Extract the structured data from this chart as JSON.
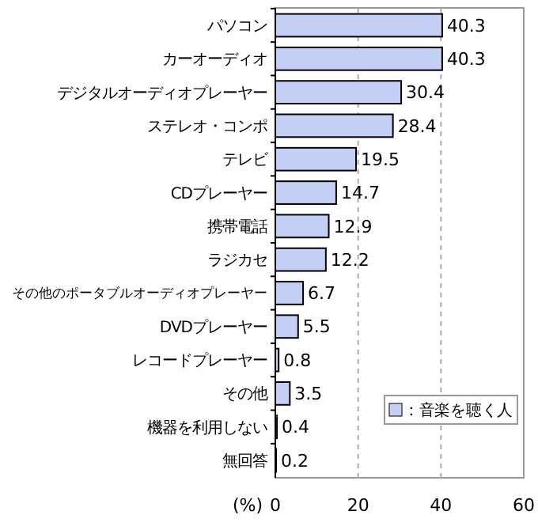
{
  "chart_data": {
    "type": "bar",
    "orientation": "horizontal",
    "xlabel": "(%)",
    "categories": [
      "パソコン",
      "カーオーディオ",
      "デジタルオーディオプレーヤー",
      "ステレオ・コンポ",
      "テレビ",
      "CDプレーヤー",
      "携帯電話",
      "ラジカセ",
      "その他のポータブルオーディオプレーヤー",
      "DVDプレーヤー",
      "レコードプレーヤー",
      "その他",
      "機器を利用しない",
      "無回答"
    ],
    "series": [
      {
        "name": "：音楽を聴く人",
        "color": "#c3cff5",
        "values": [
          40.3,
          40.3,
          30.4,
          28.4,
          19.5,
          14.7,
          12.9,
          12.2,
          6.7,
          5.5,
          0.8,
          3.5,
          0.4,
          0.2
        ]
      }
    ],
    "xlim": [
      0,
      60
    ],
    "xticks": [
      0,
      20,
      40,
      60
    ],
    "grid": "x",
    "data_labels": true,
    "legend": "bottom right"
  }
}
